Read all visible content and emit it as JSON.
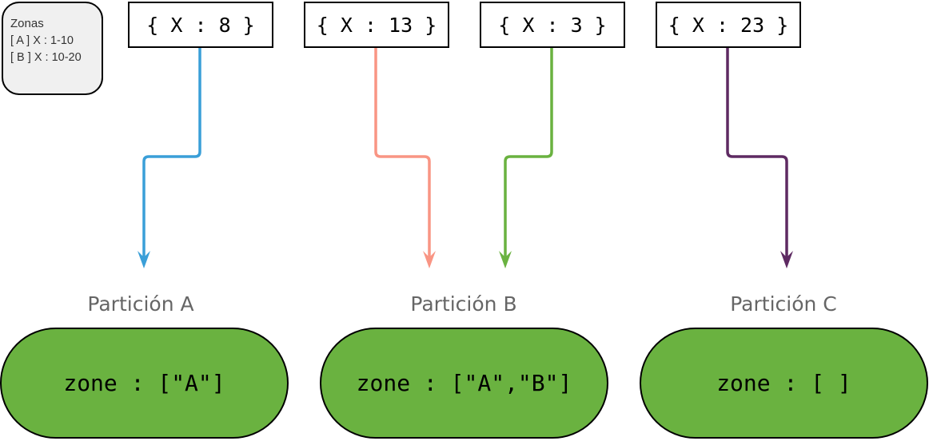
{
  "legend": {
    "title": "Zonas",
    "items": [
      "[ A ] X :  1-10",
      "[ B ] X : 10-20"
    ]
  },
  "documents": [
    {
      "label": "{ X : 8 }",
      "color": "#3a9fd8"
    },
    {
      "label": "{ X : 13 }",
      "color": "#f99584"
    },
    {
      "label": "{ X : 3 }",
      "color": "#6ab240"
    },
    {
      "label": "{ X : 23 }",
      "color": "#5e2a62"
    }
  ],
  "partitions": [
    {
      "title": "Partición A",
      "zone": "zone : [\"A\"]"
    },
    {
      "title": "Partición B",
      "zone": "zone : [\"A\",\"B\"]"
    },
    {
      "title": "Partición C",
      "zone": "zone : [ ]"
    }
  ],
  "colors": {
    "partition_fill": "#6ab240",
    "legend_fill": "#f0f0f0"
  }
}
